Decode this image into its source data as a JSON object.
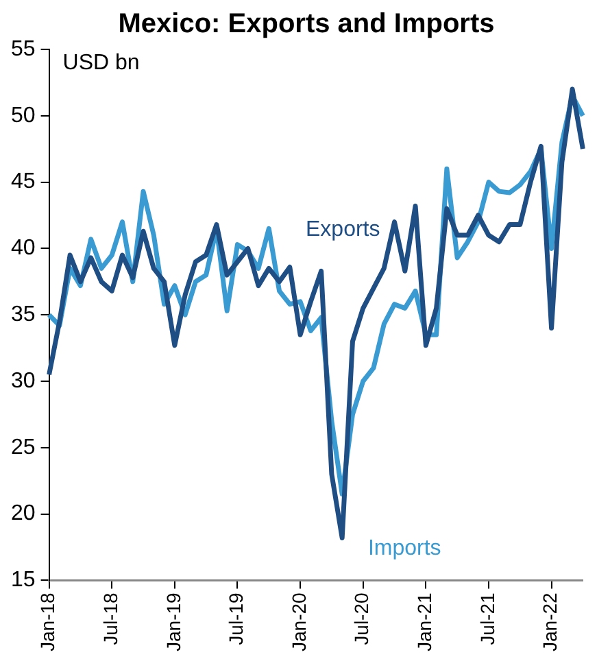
{
  "chart_data": {
    "type": "line",
    "title": "Mexico: Exports and Imports",
    "ylabel": "USD bn",
    "categories": [
      "Jan-18",
      null,
      null,
      null,
      null,
      null,
      "Jul-18",
      null,
      null,
      null,
      null,
      null,
      "Jan-19",
      null,
      null,
      null,
      null,
      null,
      "Jul-19",
      null,
      null,
      null,
      null,
      null,
      "Jan-20",
      null,
      null,
      null,
      null,
      null,
      "Jul-20",
      null,
      null,
      null,
      null,
      null,
      "Jan-21",
      null,
      null,
      null,
      null,
      null,
      "Jul-21",
      null,
      null,
      null,
      null,
      null,
      "Jan-22",
      null,
      null,
      null
    ],
    "series": [
      {
        "name": "Exports",
        "color": "#1f4e85",
        "values": [
          30.5,
          34.5,
          39.5,
          37.5,
          39.3,
          37.5,
          36.8,
          39.5,
          37.8,
          41.3,
          38.5,
          37.5,
          32.7,
          36.5,
          39,
          39.5,
          41.8,
          38,
          39,
          40,
          37.2,
          38.5,
          37.5,
          38.6,
          33.5,
          36,
          38.3,
          23,
          18.2,
          33,
          35.5,
          37,
          38.5,
          42,
          38.3,
          43.2,
          32.7,
          35.5,
          43,
          41,
          41,
          42.5,
          41,
          40.5,
          41.8,
          41.8,
          45,
          47.7,
          34,
          46.5,
          52,
          47.5
        ]
      },
      {
        "name": "Imports",
        "color": "#3a9bd2",
        "values": [
          35,
          34.2,
          38.5,
          37.2,
          40.7,
          38.5,
          39.5,
          42,
          37.5,
          44.3,
          41,
          35.8,
          37.2,
          35,
          37.5,
          38,
          41.5,
          35.3,
          40.3,
          39.8,
          38.5,
          41.5,
          36.8,
          35.8,
          36,
          33.8,
          34.8,
          27,
          21.5,
          27.5,
          30,
          31,
          34.3,
          35.8,
          35.5,
          36.8,
          33.5,
          33.5,
          46,
          39.3,
          40.5,
          42,
          45,
          44.3,
          44.2,
          44.8,
          45.8,
          47.5,
          40,
          48,
          51.5,
          50
        ]
      }
    ],
    "ylim": [
      15,
      55
    ],
    "yticks": [
      15,
      20,
      25,
      30,
      35,
      40,
      45,
      50,
      55
    ],
    "grid": false,
    "legend": false,
    "marker": "none",
    "line_style": "solid"
  }
}
